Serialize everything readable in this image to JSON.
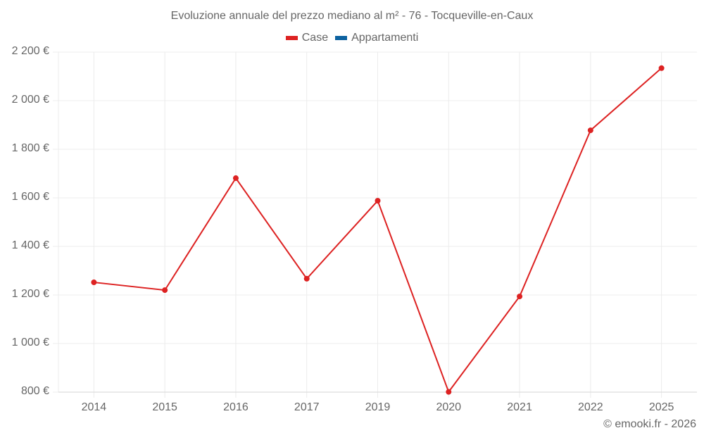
{
  "header": {
    "title": "Evoluzione annuale del prezzo mediano al m² - 76 - Tocqueville-en-Caux"
  },
  "legend": [
    {
      "label": "Case",
      "color": "#dd2222"
    },
    {
      "label": "Appartamenti",
      "color": "#0d62a0"
    }
  ],
  "y_axis": {
    "ticks": [
      "2 200 €",
      "2 000 €",
      "1 800 €",
      "1 600 €",
      "1 400 €",
      "1 200 €",
      "1 000 €",
      "800 €"
    ]
  },
  "x_axis": {
    "ticks": [
      "2014",
      "2015",
      "2016",
      "2017",
      "2019",
      "2020",
      "2021",
      "2022",
      "2025"
    ]
  },
  "footer": {
    "credit": "© emooki.fr - 2026"
  },
  "chart_data": {
    "type": "line",
    "title": "Evoluzione annuale del prezzo mediano al m² - 76 - Tocqueville-en-Caux",
    "xlabel": "",
    "ylabel": "",
    "categories": [
      "2014",
      "2015",
      "2016",
      "2017",
      "2019",
      "2020",
      "2021",
      "2022",
      "2025"
    ],
    "series": [
      {
        "name": "Case",
        "color": "#dd2222",
        "values": [
          1252,
          1220,
          1681,
          1267,
          1588,
          801,
          1194,
          1878,
          2134
        ]
      },
      {
        "name": "Appartamenti",
        "color": "#0d62a0",
        "values": []
      }
    ],
    "ylim": [
      800,
      2200
    ],
    "y_tick_step": 200,
    "y_unit": "€",
    "grid": true,
    "legend_position": "top"
  }
}
